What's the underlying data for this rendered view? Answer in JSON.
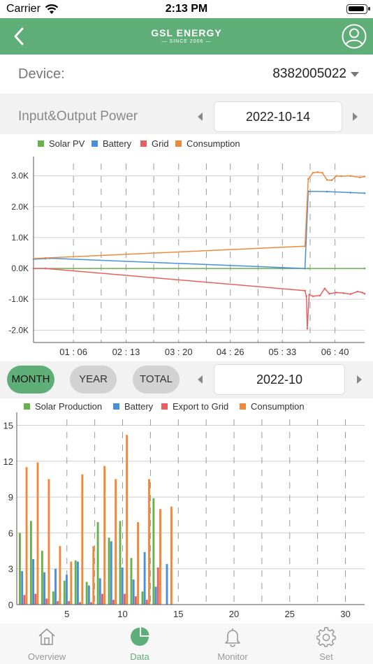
{
  "status": {
    "carrier": "Carrier",
    "time": "2:13 PM"
  },
  "nav": {
    "logo_main": "GSL ENERGY",
    "logo_sub": "— SINCE 2006 —"
  },
  "device": {
    "label": "Device:",
    "value": "8382005022"
  },
  "io": {
    "label": "Input&Output Power",
    "date": "2022-10-14"
  },
  "range": {
    "buttons": [
      "MONTH",
      "YEAR",
      "TOTAL"
    ],
    "selected": "MONTH",
    "date": "2022-10"
  },
  "tabs": [
    "Overview",
    "Data",
    "Monitor",
    "Set"
  ],
  "active_tab": "Data",
  "colors": {
    "accent": "#5fae78",
    "solar": "#6ab04c",
    "battery": "#4a90d9",
    "grid": "#e8615f",
    "consumption": "#ef8a3c"
  },
  "chart_data": [
    {
      "type": "line",
      "legend": [
        "Solar PV",
        "Battery",
        "Grid",
        "Consumption"
      ],
      "xticks": [
        "01 : 06",
        "02 : 13",
        "03 : 20",
        "04 : 26",
        "05 : 33",
        "06 : 40"
      ],
      "yticks": [
        "3.0K",
        "2.0K",
        "1.0K",
        "0.0K",
        "-1.0K",
        "-2.0K"
      ],
      "x_range_hours": [
        0.25,
        7.3
      ],
      "ylim": [
        -2400,
        3400
      ],
      "series": [
        {
          "name": "Solar PV",
          "x": [
            0.25,
            6.03,
            6.1,
            7.3
          ],
          "y": [
            0,
            0,
            0,
            0
          ]
        },
        {
          "name": "Battery",
          "x": [
            0.25,
            0.5,
            0.6,
            6.03,
            6.1,
            6.5,
            7.0,
            7.3
          ],
          "y": [
            300,
            320,
            330,
            0,
            2500,
            2490,
            2460,
            2440
          ]
        },
        {
          "name": "Grid",
          "x": [
            0.25,
            0.5,
            6.03,
            6.06,
            6.08,
            6.12,
            6.2,
            6.35,
            6.45,
            6.55,
            6.7,
            6.85,
            7.0,
            7.15,
            7.25,
            7.3
          ],
          "y": [
            0,
            0,
            -720,
            -900,
            -1950,
            -850,
            -900,
            -880,
            -650,
            -820,
            -780,
            -800,
            -830,
            -750,
            -780,
            -820
          ]
        },
        {
          "name": "Consumption",
          "x": [
            0.25,
            0.5,
            6.03,
            6.1,
            6.2,
            6.3,
            6.4,
            6.5,
            6.6,
            6.7,
            6.8,
            7.0,
            7.2,
            7.3
          ],
          "y": [
            320,
            340,
            720,
            2900,
            3100,
            3120,
            3100,
            2870,
            2860,
            3000,
            2990,
            3000,
            2950,
            2980
          ]
        }
      ]
    },
    {
      "type": "bar",
      "legend": [
        "Solar Production",
        "Battery",
        "Export to Grid",
        "Consumption"
      ],
      "xticks": [
        5,
        10,
        15,
        20,
        25,
        30
      ],
      "yticks": [
        0,
        3,
        6,
        9,
        12,
        15
      ],
      "ylim": [
        0,
        15.5
      ],
      "categories": [
        1,
        2,
        3,
        4,
        5,
        6,
        7,
        8,
        9,
        10,
        11,
        12,
        13,
        14
      ],
      "series": [
        {
          "name": "Solar Production",
          "values": [
            6.0,
            7.0,
            4.5,
            1.1,
            2.0,
            3.7,
            1.9,
            6.9,
            5.6,
            7.0,
            3.9,
            1.1,
            8.9,
            0
          ]
        },
        {
          "name": "Battery",
          "values": [
            2.8,
            3.8,
            2.7,
            3.0,
            2.5,
            3.6,
            1.6,
            2.2,
            5.3,
            3.1,
            2.1,
            4.4,
            1.5,
            3.4
          ]
        },
        {
          "name": "Export to Grid",
          "values": [
            0.8,
            0.9,
            0.5,
            0.3,
            0.3,
            0.2,
            0.2,
            0.9,
            0.4,
            0.9,
            0.7,
            0.4,
            3.1,
            0
          ]
        },
        {
          "name": "Consumption",
          "values": [
            11.5,
            11.9,
            10.5,
            4.9,
            3.6,
            10.9,
            4.9,
            11.6,
            10.5,
            14.2,
            6.9,
            10.5,
            8.0,
            8.2
          ]
        }
      ]
    }
  ]
}
